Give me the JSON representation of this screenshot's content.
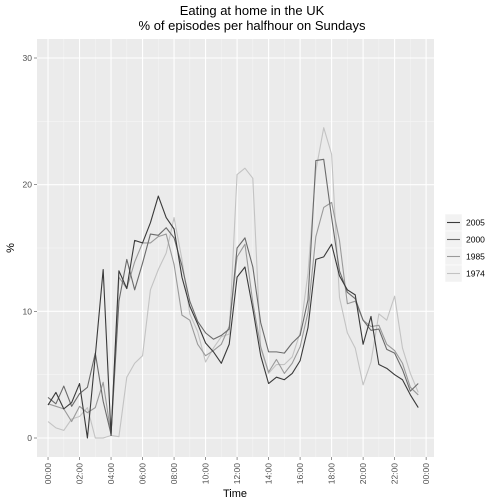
{
  "chart_data": {
    "type": "line",
    "title": "Eating at home in the UK",
    "subtitle": "% of episodes per halfhour on Sundays",
    "xlabel": "Time",
    "ylabel": "%",
    "x_ticks": [
      "00:00",
      "02:00",
      "04:00",
      "06:00",
      "08:00",
      "10:00",
      "12:00",
      "14:00",
      "16:00",
      "18:00",
      "20:00",
      "22:00",
      "00:00"
    ],
    "y_ticks": [
      0,
      10,
      20,
      30
    ],
    "xlim": [
      -0.7,
      24.5
    ],
    "ylim": [
      -1.5,
      31.5
    ],
    "grid": true,
    "legend_position": "right",
    "x": [
      0,
      0.5,
      1,
      1.5,
      2,
      2.5,
      3,
      3.5,
      4,
      4.5,
      5,
      5.5,
      6,
      6.5,
      7,
      7.5,
      8,
      8.5,
      9,
      9.5,
      10,
      10.5,
      11,
      11.5,
      12,
      12.5,
      13,
      13.5,
      14,
      14.5,
      15,
      15.5,
      16,
      16.5,
      17,
      17.5,
      18,
      18.5,
      19,
      19.5,
      20,
      20.5,
      21,
      21.5,
      22,
      22.5,
      23,
      23.5
    ],
    "series": [
      {
        "name": "2005",
        "color": "#3a3a3a",
        "values": [
          2.6,
          3.6,
          2.3,
          2.8,
          4.3,
          0.0,
          6.5,
          13.3,
          0.2,
          13.2,
          11.8,
          15.6,
          15.4,
          17.0,
          19.1,
          17.4,
          16.5,
          12.7,
          10.4,
          9.0,
          7.5,
          6.8,
          5.9,
          7.4,
          12.7,
          13.5,
          10.2,
          6.5,
          4.3,
          4.8,
          4.6,
          5.1,
          6.1,
          8.7,
          14.1,
          14.3,
          15.3,
          12.8,
          11.7,
          11.3,
          7.4,
          9.6,
          5.8,
          5.5,
          5.0,
          4.6,
          3.4,
          2.4
        ]
      },
      {
        "name": "2000",
        "color": "#6b6b6b",
        "values": [
          3.2,
          2.7,
          4.1,
          2.5,
          3.5,
          4.0,
          6.7,
          2.9,
          0.3,
          10.8,
          14.1,
          11.7,
          13.8,
          16.1,
          16.0,
          16.6,
          15.8,
          13.6,
          10.8,
          9.2,
          8.3,
          7.8,
          8.1,
          8.6,
          15.0,
          15.8,
          13.5,
          9.1,
          6.8,
          6.8,
          6.7,
          7.5,
          8.1,
          10.9,
          21.9,
          22.0,
          17.4,
          13.2,
          11.5,
          11.0,
          9.3,
          8.5,
          8.6,
          7.0,
          6.7,
          5.4,
          3.7,
          4.3
        ]
      },
      {
        "name": "1985",
        "color": "#9a9a9a",
        "values": [
          2.7,
          2.5,
          2.3,
          1.3,
          2.5,
          2.0,
          2.4,
          4.4,
          0.3,
          12.7,
          11.8,
          13.9,
          15.4,
          15.4,
          15.9,
          16.1,
          13.7,
          9.7,
          9.3,
          7.4,
          6.5,
          6.9,
          7.4,
          8.8,
          14.3,
          15.3,
          10.7,
          7.2,
          5.2,
          6.2,
          5.1,
          5.9,
          7.2,
          9.9,
          15.9,
          18.2,
          18.6,
          15.6,
          10.6,
          10.8,
          9.3,
          8.8,
          8.9,
          7.4,
          6.9,
          5.9,
          4.0,
          3.4
        ]
      },
      {
        "name": "1974",
        "color": "#c3c3c3",
        "values": [
          1.3,
          0.8,
          0.6,
          1.5,
          1.7,
          2.4,
          0.0,
          0.0,
          0.2,
          0.1,
          4.8,
          5.9,
          6.5,
          11.7,
          13.3,
          14.6,
          17.4,
          14.1,
          9.8,
          8.4,
          6.0,
          7.1,
          8.0,
          8.2,
          20.8,
          21.3,
          20.5,
          7.1,
          5.1,
          5.8,
          5.8,
          6.4,
          8.3,
          13.0,
          21.1,
          24.5,
          22.4,
          11.1,
          8.3,
          7.1,
          4.2,
          6.0,
          9.8,
          9.3,
          11.2,
          7.1,
          5.1,
          3.6
        ]
      }
    ]
  }
}
